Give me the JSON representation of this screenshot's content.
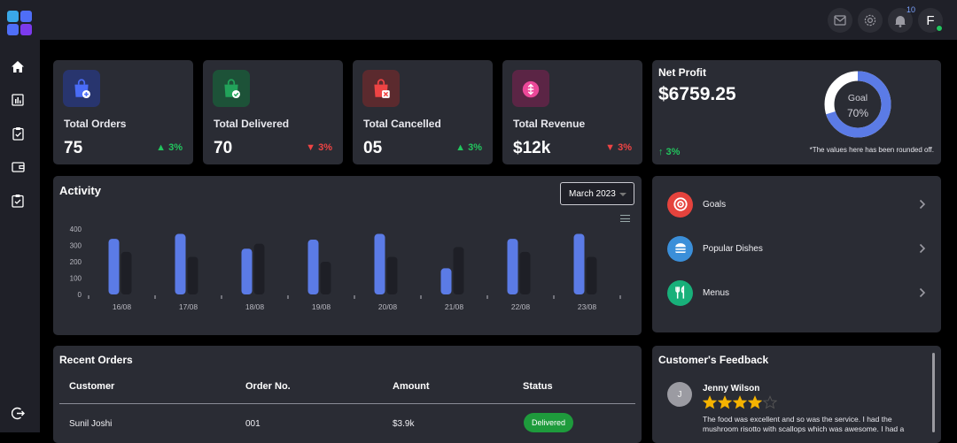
{
  "topbar": {
    "notification_count": "10",
    "user_initial": "F"
  },
  "stats": [
    {
      "label": "Total Orders",
      "value": "75",
      "change": "▲ 3%",
      "trend": "up",
      "icon": "shopping-bag-add-icon",
      "bg": "#28356e",
      "fg": "#4a6cf7"
    },
    {
      "label": "Total Delivered",
      "value": "70",
      "change": "▼ 3%",
      "trend": "down",
      "icon": "shopping-bag-check-icon",
      "bg": "#1d5238",
      "fg": "#22a35a"
    },
    {
      "label": "Total Cancelled",
      "value": "05",
      "change": "▲ 3%",
      "trend": "up",
      "icon": "shopping-bag-x-icon",
      "bg": "#5b2a2e",
      "fg": "#ef4444"
    },
    {
      "label": "Total Revenue",
      "value": "$12k",
      "change": "▼ 3%",
      "trend": "down",
      "icon": "revenue-icon",
      "bg": "#5b2545",
      "fg": "#ec4899"
    }
  ],
  "net_profit": {
    "title": "Net Profit",
    "value": "$6759.25",
    "change": "↑ 3%",
    "note": "*The values here has been rounded off.",
    "goal_label": "Goal",
    "goal_percent_text": "70%",
    "goal_fraction": 0.7
  },
  "activity": {
    "title": "Activity",
    "month": "March 2023"
  },
  "chart_data": {
    "type": "bar",
    "categories": [
      "16/08",
      "17/08",
      "18/08",
      "19/08",
      "20/08",
      "21/08",
      "22/08",
      "23/08"
    ],
    "series": [
      {
        "values": [
          340,
          370,
          280,
          335,
          370,
          160,
          340,
          370
        ],
        "color": "#5b7be6"
      },
      {
        "values": [
          260,
          230,
          310,
          200,
          230,
          290,
          260,
          230
        ],
        "color": "#1e1f26"
      }
    ],
    "yticks": [
      0,
      100,
      200,
      300,
      400
    ],
    "ylim": [
      0,
      400
    ]
  },
  "nav": [
    {
      "label": "Goals",
      "icon": "target-icon",
      "bg": "#e5433d"
    },
    {
      "label": "Popular Dishes",
      "icon": "burger-icon",
      "bg": "#3b8fd9"
    },
    {
      "label": "Menus",
      "icon": "utensils-icon",
      "bg": "#18b07a"
    }
  ],
  "recent_orders": {
    "title": "Recent Orders",
    "headers": [
      "Customer",
      "Order No.",
      "Amount",
      "Status"
    ],
    "rows": [
      {
        "customer": "Sunil Joshi",
        "order_no": "001",
        "amount": "$3.9k",
        "status": "Delivered"
      }
    ]
  },
  "feedback": {
    "title": "Customer's Feedback",
    "items": [
      {
        "initial": "J",
        "name": "Jenny Wilson",
        "rating": 4,
        "text": "The food was excellent and so was the service. I had the mushroom risotto with scallops which was awesome. I had a"
      }
    ]
  }
}
